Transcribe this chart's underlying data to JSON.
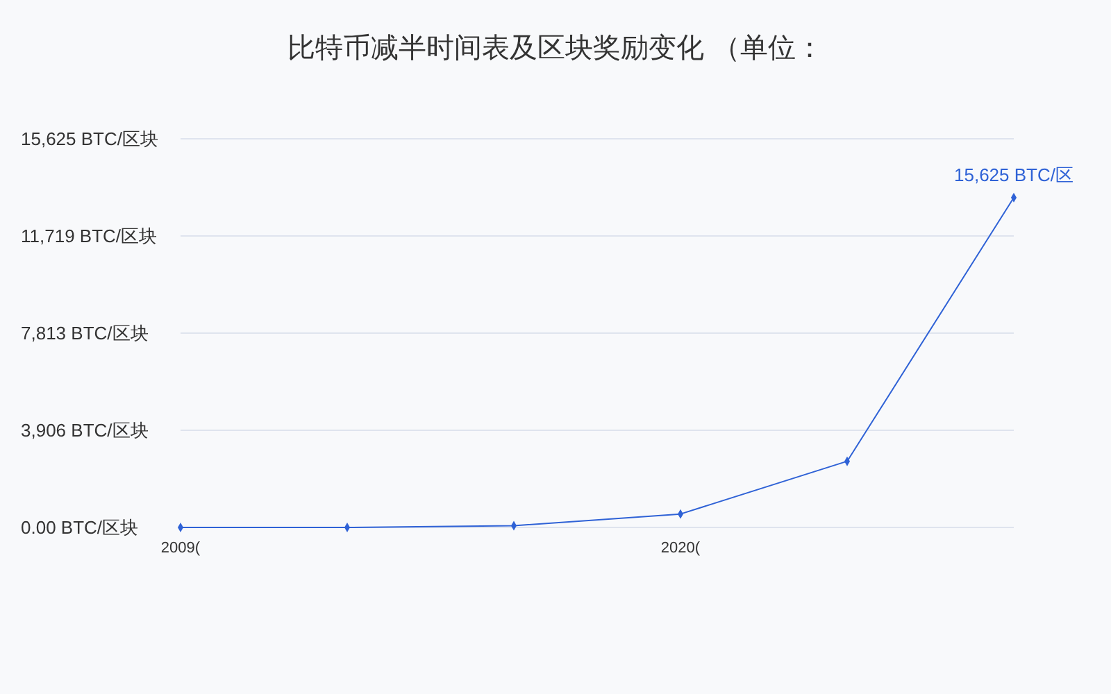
{
  "chart_data": {
    "type": "line",
    "title": "比特币减半时间表及区块奖励变化 （单位：",
    "categories": [
      "2009(",
      null,
      null,
      "2020(",
      null,
      null
    ],
    "values": [
      0,
      0,
      70,
      540,
      2660,
      13260
    ],
    "color": "#2f62d6",
    "annotations": [
      {
        "text": "15,625 BTC/区",
        "y": 13260
      }
    ],
    "ylim": [
      0,
      15625
    ],
    "yticks": [
      {
        "value": 0,
        "label": "0.00 BTC/区块"
      },
      {
        "value": 3906.25,
        "label": "3,906 BTC/区块"
      },
      {
        "value": 7812.5,
        "label": "7,813 BTC/区块"
      },
      {
        "value": 11718.75,
        "label": "11,719 BTC/区块"
      },
      {
        "value": 15625,
        "label": "15,625 BTC/区块"
      }
    ],
    "grid": "y",
    "marker": "diamond"
  }
}
